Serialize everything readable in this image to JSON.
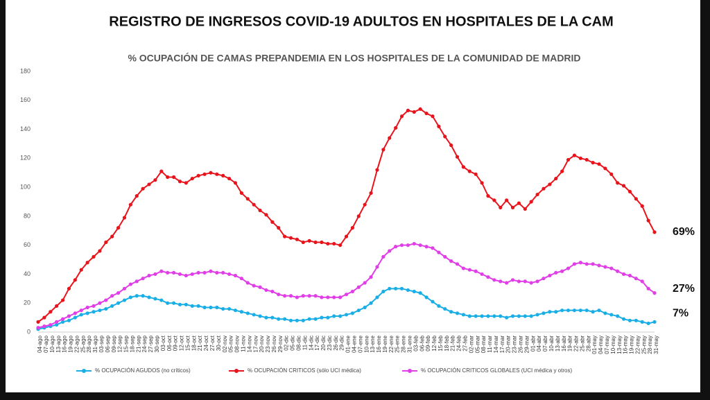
{
  "chart_data": {
    "type": "line",
    "title": "REGISTRO DE INGRESOS COVID-19 ADULTOS  EN HOSPITALES DE LA CAM",
    "subtitle": "% OCUPACIÓN DE CAMAS PREPANDEMIA EN LOS HOSPITALES DE LA COMUNIDAD DE MADRID",
    "categories": [
      "04-ago",
      "07-ago",
      "10-ago",
      "13-ago",
      "16-ago",
      "19-ago",
      "22-ago",
      "25-ago",
      "28-ago",
      "31-ago",
      "03-sep",
      "06-sep",
      "09-sep",
      "12-sep",
      "15-sep",
      "18-sep",
      "21-sep",
      "24-sep",
      "27-sep",
      "30-sep",
      "03-oct",
      "06-oct",
      "09-oct",
      "12-oct",
      "15-oct",
      "18-oct",
      "21-oct",
      "24-oct",
      "27-oct",
      "30-oct",
      "02-nov",
      "05-nov",
      "08-nov",
      "11-nov",
      "14-nov",
      "17-nov",
      "20-nov",
      "23-nov",
      "26-nov",
      "29-nov",
      "02-dic",
      "05-dic",
      "08-dic",
      "11-dic",
      "14-dic",
      "17-dic",
      "20-dic",
      "23-dic",
      "26-dic",
      "29-dic",
      "01-ene",
      "04-ene",
      "07-ene",
      "10-ene",
      "13-ene",
      "16-ene",
      "19-ene",
      "22-ene",
      "25-ene",
      "28-ene",
      "31-ene",
      "03-feb",
      "06-feb",
      "09-feb",
      "12-feb",
      "15-feb",
      "18-feb",
      "21-feb",
      "24-feb",
      "27-feb",
      "02-mar",
      "05-mar",
      "08-mar",
      "11-mar",
      "14-mar",
      "17-mar",
      "20-mar",
      "23-mar",
      "26-mar",
      "29-mar",
      "01-abr",
      "04-abr",
      "07-abr",
      "10-abr",
      "13-abr",
      "16-abr",
      "19-abr",
      "22-abr",
      "25-abr",
      "28-abr",
      "01-may",
      "04-may",
      "07-may",
      "10-may",
      "13-may",
      "16-may",
      "19-may",
      "22-may",
      "25-may",
      "28-may",
      "31-may"
    ],
    "series": [
      {
        "name": "% OCUPACIÓN AGUDOS (no críticos)",
        "color": "#19aee6",
        "values": [
          2,
          3,
          4,
          5,
          7,
          8,
          10,
          12,
          13,
          14,
          15,
          16,
          18,
          20,
          22,
          24,
          25,
          25,
          24,
          23,
          22,
          20,
          20,
          19,
          19,
          18,
          18,
          17,
          17,
          17,
          16,
          16,
          15,
          14,
          13,
          12,
          11,
          10,
          10,
          9,
          9,
          8,
          8,
          8,
          9,
          9,
          10,
          10,
          11,
          11,
          12,
          13,
          15,
          17,
          20,
          24,
          28,
          30,
          30,
          30,
          29,
          28,
          27,
          24,
          21,
          18,
          16,
          14,
          13,
          12,
          11,
          11,
          11,
          11,
          11,
          11,
          10,
          11,
          11,
          11,
          11,
          12,
          13,
          14,
          14,
          15,
          15,
          15,
          15,
          15,
          14,
          15,
          13,
          12,
          11,
          9,
          8,
          8,
          7,
          6,
          7
        ],
        "end_label": "7%"
      },
      {
        "name": "% OCUPACIÓN CRITICOS (sólo UCI médica)",
        "color": "#e8141c",
        "values": [
          7,
          10,
          14,
          18,
          22,
          30,
          36,
          43,
          48,
          52,
          56,
          62,
          66,
          72,
          79,
          88,
          94,
          99,
          102,
          105,
          111,
          107,
          107,
          104,
          103,
          106,
          108,
          109,
          110,
          109,
          108,
          106,
          103,
          96,
          92,
          88,
          84,
          81,
          76,
          72,
          66,
          65,
          64,
          62,
          63,
          62,
          62,
          61,
          61,
          60,
          66,
          72,
          80,
          88,
          96,
          112,
          126,
          134,
          141,
          149,
          153,
          152,
          154,
          151,
          149,
          142,
          135,
          129,
          121,
          114,
          111,
          109,
          103,
          94,
          91,
          86,
          91,
          86,
          89,
          85,
          90,
          95,
          99,
          102,
          106,
          111,
          119,
          122,
          120,
          119,
          117,
          116,
          113,
          109,
          103,
          101,
          97,
          92,
          87,
          77,
          69
        ],
        "end_label": "69%"
      },
      {
        "name": "% OCUPACIÓN CRITICOS GLOBALES  (UCI médica y otros)",
        "color": "#e03ee6",
        "values": [
          3,
          4,
          5,
          7,
          9,
          11,
          13,
          15,
          17,
          18,
          20,
          22,
          25,
          27,
          30,
          33,
          35,
          37,
          39,
          40,
          42,
          41,
          41,
          40,
          39,
          40,
          41,
          41,
          42,
          41,
          41,
          40,
          39,
          37,
          34,
          32,
          31,
          29,
          28,
          26,
          25,
          25,
          24,
          25,
          25,
          25,
          24,
          24,
          24,
          24,
          26,
          28,
          31,
          34,
          38,
          45,
          52,
          56,
          59,
          60,
          60,
          61,
          60,
          59,
          58,
          55,
          52,
          49,
          47,
          44,
          43,
          42,
          40,
          38,
          36,
          35,
          34,
          36,
          35,
          35,
          34,
          35,
          37,
          39,
          41,
          42,
          44,
          47,
          48,
          47,
          47,
          46,
          45,
          44,
          42,
          40,
          39,
          37,
          35,
          30,
          27
        ],
        "end_label": "27%"
      }
    ],
    "ylim": [
      0,
      180
    ],
    "yticks": [
      0,
      20,
      40,
      60,
      80,
      100,
      120,
      140,
      160,
      180
    ],
    "grid": false
  }
}
